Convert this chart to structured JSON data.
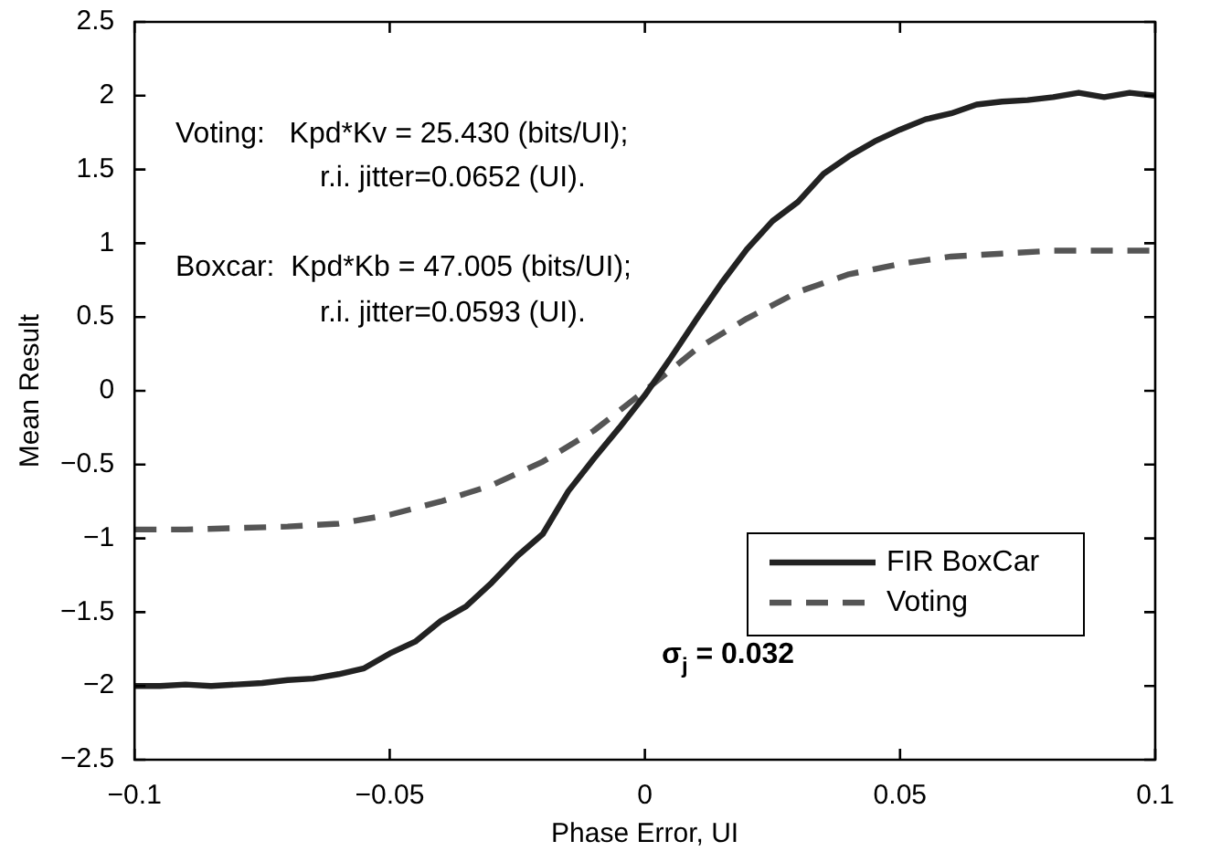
{
  "chart_data": {
    "type": "line",
    "xlabel": "Phase Error, UI",
    "ylabel": "Mean Result",
    "xlim": [
      -0.1,
      0.1
    ],
    "xticks": [
      {
        "value": -0.1,
        "label": "−0.1"
      },
      {
        "value": -0.05,
        "label": "−0.05"
      },
      0,
      0.05,
      0.1
    ],
    "ylim": [
      -2.5,
      2.5
    ],
    "yticks": [
      {
        "value": -2.5,
        "label": "−2.5"
      },
      {
        "value": -2,
        "label": "−2"
      },
      {
        "value": -1.5,
        "label": "−1.5"
      },
      {
        "value": -1,
        "label": "−1"
      },
      {
        "value": -0.5,
        "label": "−0.5"
      },
      0,
      0.5,
      1,
      1.5,
      2,
      2.5
    ],
    "grid": false,
    "legend": "bottom right",
    "marker": "none",
    "annotations": [
      "Voting:   Kpd*Kv = 25.430 (bits/UI);",
      "r.i. jitter=0.0652 (UI).",
      "Boxcar:  Kpd*Kb = 47.005 (bits/UI);",
      "r.i. jitter=0.0593 (UI).",
      "σ$_{j}$ = 0.032"
    ],
    "series": [
      {
        "name": "FIR BoxCar",
        "color": "#222222",
        "line_style": "solid",
        "x": [
          -0.1,
          -0.095,
          -0.09,
          -0.085,
          -0.08,
          -0.075,
          -0.07,
          -0.065,
          -0.06,
          -0.055,
          -0.05,
          -0.045,
          -0.04,
          -0.035,
          -0.03,
          -0.025,
          -0.02,
          -0.015,
          -0.01,
          -0.005,
          0,
          0.005,
          0.01,
          0.015,
          0.02,
          0.025,
          0.03,
          0.035,
          0.04,
          0.045,
          0.05,
          0.055,
          0.06,
          0.065,
          0.07,
          0.075,
          0.08,
          0.085,
          0.09,
          0.095,
          0.1
        ],
        "values": [
          -2.0,
          -2.0,
          -1.99,
          -2.0,
          -1.99,
          -1.98,
          -1.96,
          -1.95,
          -1.92,
          -1.88,
          -1.78,
          -1.7,
          -1.56,
          -1.46,
          -1.3,
          -1.12,
          -0.97,
          -0.68,
          -0.46,
          -0.25,
          -0.03,
          0.22,
          0.48,
          0.73,
          0.96,
          1.15,
          1.28,
          1.47,
          1.59,
          1.69,
          1.77,
          1.84,
          1.88,
          1.94,
          1.96,
          1.97,
          1.99,
          2.02,
          1.99,
          2.02,
          2.0
        ]
      },
      {
        "name": "Voting",
        "color": "#555555",
        "line_style": "dashed",
        "x": [
          -0.1,
          -0.09,
          -0.08,
          -0.07,
          -0.06,
          -0.05,
          -0.04,
          -0.03,
          -0.02,
          -0.01,
          0,
          0.01,
          0.02,
          0.03,
          0.04,
          0.05,
          0.06,
          0.07,
          0.08,
          0.09,
          0.1
        ],
        "values": [
          -0.94,
          -0.94,
          -0.93,
          -0.92,
          -0.9,
          -0.84,
          -0.75,
          -0.64,
          -0.48,
          -0.27,
          0,
          0.28,
          0.49,
          0.67,
          0.79,
          0.86,
          0.91,
          0.93,
          0.95,
          0.95,
          0.95
        ]
      }
    ]
  }
}
